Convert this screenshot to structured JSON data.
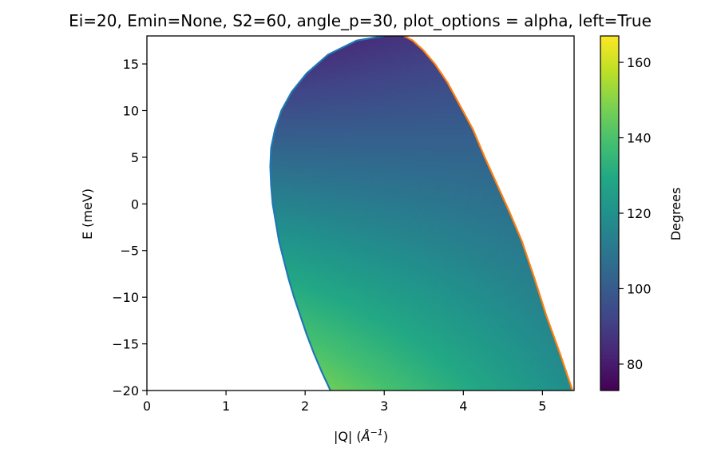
{
  "chart_data": {
    "type": "heatmap",
    "title": "Ei=20, Emin=None, S2=60, angle_p=30, plot_options = alpha, left=True",
    "xlabel": "|Q| (",
    "xlabel_unit": "Å",
    "xlabel_exp": "−1",
    "xlabel_close": ")",
    "ylabel": "E (meV)",
    "xlim": [
      0,
      5.4
    ],
    "ylim": [
      -20,
      18
    ],
    "x_ticks": [
      0,
      1,
      2,
      3,
      4,
      5
    ],
    "y_ticks": [
      -20,
      -15,
      -10,
      -5,
      0,
      5,
      10,
      15
    ],
    "colorbar": {
      "label": "Degrees",
      "range": [
        73,
        167
      ],
      "ticks": [
        80,
        100,
        120,
        140,
        160
      ],
      "colormap": "viridis"
    },
    "grid": false,
    "series": [
      {
        "color": "#1f77b4",
        "description": "left boundary",
        "x": [
          2.32,
          2.21,
          2.11,
          2.02,
          1.94,
          1.86,
          1.79,
          1.73,
          1.67,
          1.63,
          1.59,
          1.57,
          1.56,
          1.57,
          1.62,
          1.7,
          1.83,
          2.02,
          2.29,
          2.65,
          3.0
        ],
        "y": [
          -20,
          -18,
          -16,
          -14,
          -12,
          -10,
          -8,
          -6,
          -4,
          -2,
          0,
          2,
          4,
          6,
          8,
          10,
          12,
          14,
          16,
          17.5,
          18
        ]
      },
      {
        "color": "#ff7f0e",
        "description": "right boundary",
        "x": [
          5.38,
          5.22,
          5.05,
          4.9,
          4.74,
          4.59,
          4.43,
          4.27,
          4.12,
          3.96,
          3.8,
          3.64,
          3.49,
          3.36,
          3.25
        ],
        "y": [
          -20,
          -16,
          -12,
          -8,
          -4,
          -1,
          2,
          5,
          8,
          10.5,
          13,
          15,
          16.5,
          17.5,
          18
        ]
      }
    ],
    "alpha_field": {
      "bottom_left": 167,
      "bottom_right": 118,
      "top_left": 75,
      "top_right": 95
    }
  }
}
